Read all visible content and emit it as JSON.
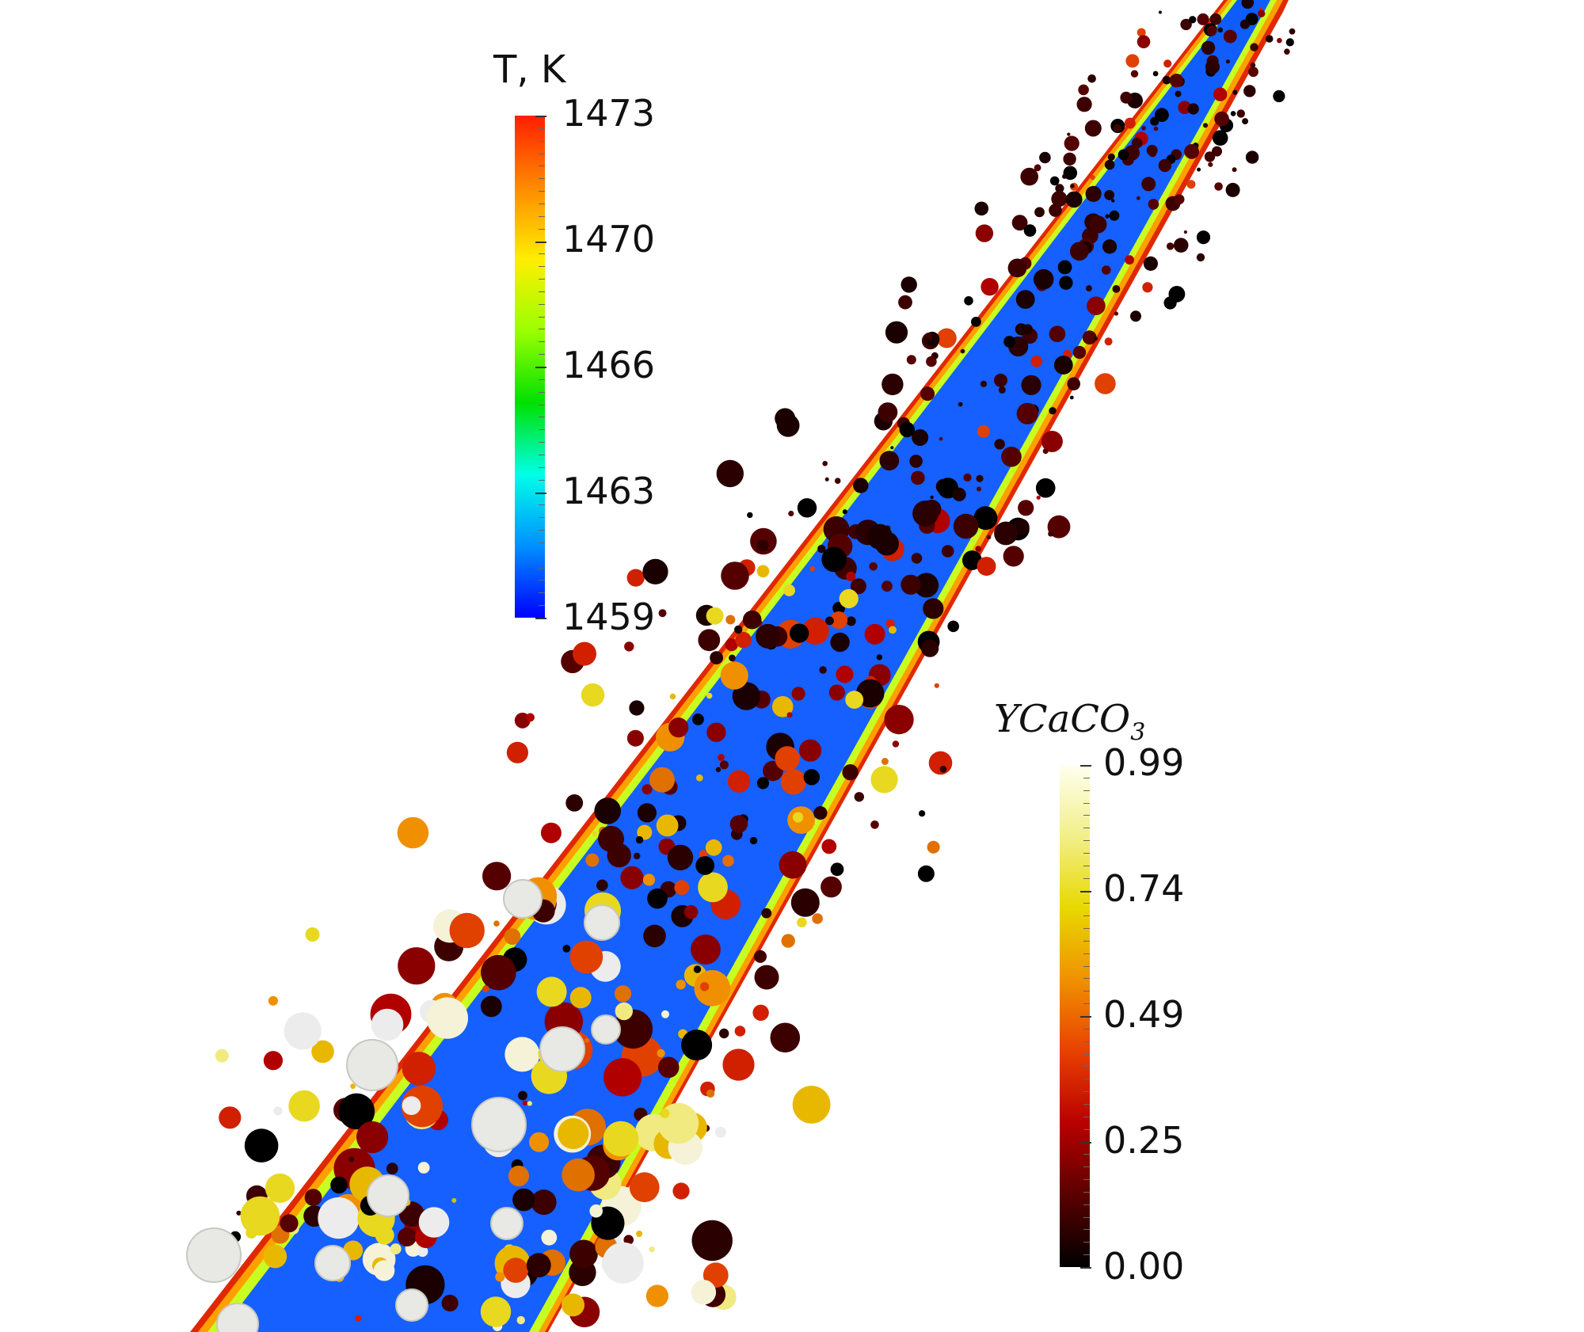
{
  "scene": {
    "background": "#ffffff",
    "jet_colors": [
      "#ff2a00",
      "#ffa200",
      "#f4ff00",
      "#27e000",
      "#00f0ff",
      "#0055ff",
      "#0000ff"
    ]
  },
  "temperature_bar": {
    "title": "T, K",
    "labels": [
      "1473",
      "1470",
      "1466",
      "1463",
      "1459"
    ],
    "gradient": [
      "#ff1e00",
      "#ff8a00",
      "#ffee00",
      "#9bff00",
      "#00e000",
      "#00ffe8",
      "#0090ff",
      "#0000ff"
    ]
  },
  "ycaco3_bar": {
    "title_main": "YCaCO",
    "title_sub": "3",
    "labels": [
      "0.99",
      "0.74",
      "0.49",
      "0.25",
      "0.00"
    ],
    "gradient": [
      "#fffff0",
      "#f2ef88",
      "#e8d800",
      "#f09000",
      "#e84000",
      "#b80000",
      "#5a0000",
      "#000000"
    ]
  }
}
